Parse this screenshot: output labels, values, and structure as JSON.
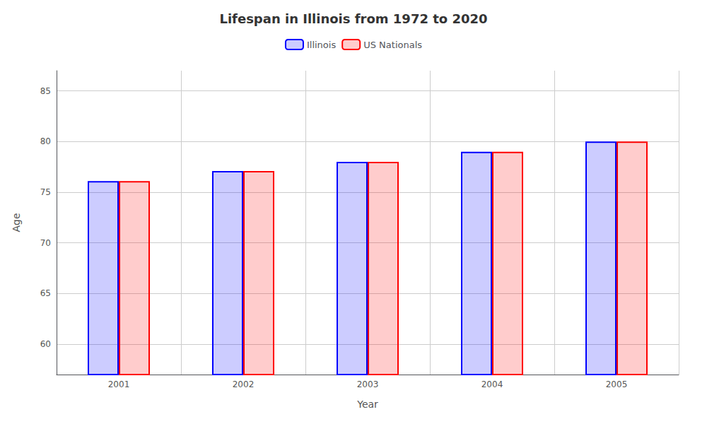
{
  "chart_data": {
    "type": "bar",
    "title": "Lifespan in Illinois from 1972 to 2020",
    "xlabel": "Year",
    "ylabel": "Age",
    "categories": [
      "2001",
      "2002",
      "2003",
      "2004",
      "2005"
    ],
    "series": [
      {
        "name": "Illinois",
        "color": "#0000ff",
        "values": [
          76.1,
          77.1,
          78.0,
          79.0,
          80.0
        ]
      },
      {
        "name": "US Nationals",
        "color": "#ff0000",
        "values": [
          76.1,
          77.1,
          78.0,
          79.0,
          80.0
        ]
      }
    ],
    "ylim": [
      57,
      87
    ],
    "yticks": [
      60,
      65,
      70,
      75,
      80,
      85
    ],
    "grid": true,
    "legend": "top"
  }
}
